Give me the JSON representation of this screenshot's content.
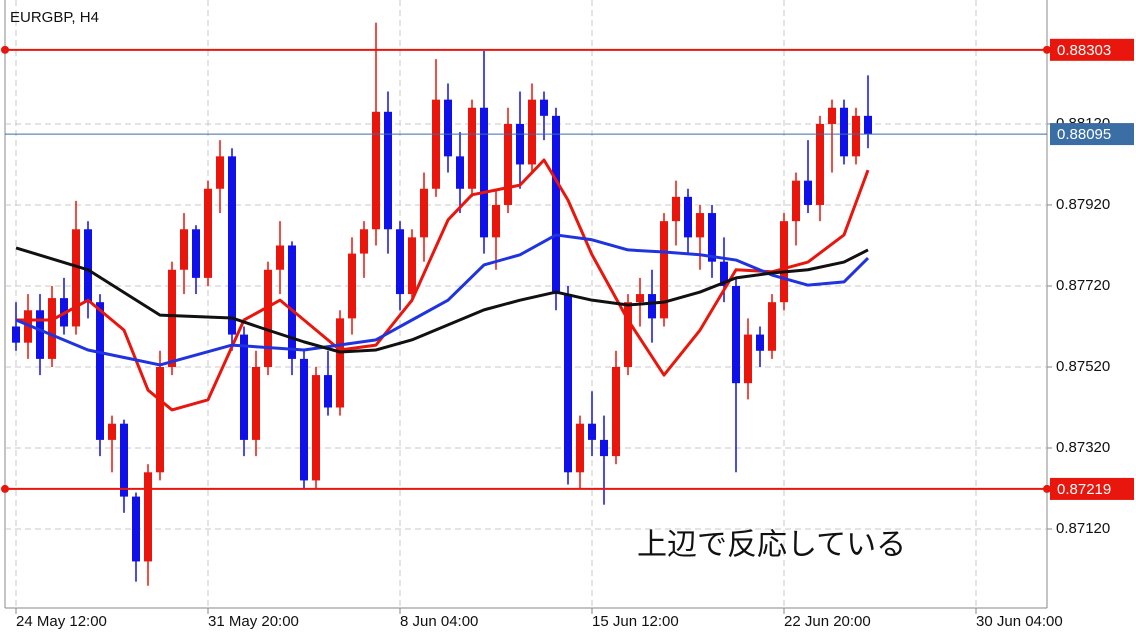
{
  "chart_data": {
    "type": "candlestick",
    "title": "EURGBP, H4",
    "annotation": "上辺で反応している",
    "categories": [
      "24 May 12:00",
      null,
      null,
      null,
      null,
      null,
      null,
      null,
      null,
      null,
      null,
      null,
      null,
      null,
      null,
      null,
      "31 May 20:00",
      null,
      null,
      null,
      null,
      null,
      null,
      null,
      null,
      null,
      null,
      null,
      null,
      null,
      null,
      null,
      "8 Jun 04:00",
      null,
      null,
      null,
      null,
      null,
      null,
      null,
      null,
      null,
      null,
      null,
      null,
      null,
      null,
      null,
      "15 Jun 12:00",
      null,
      null,
      null,
      null,
      null,
      null,
      null,
      null,
      null,
      null,
      null,
      null,
      null,
      null,
      null,
      "22 Jun 20:00",
      null,
      null,
      null,
      null,
      null,
      null,
      null,
      null,
      null,
      null,
      null,
      null,
      null,
      null,
      null,
      "30 Jun 04:00",
      null,
      null,
      null,
      null,
      null
    ],
    "open": [
      0.8762,
      0.8758,
      0.8766,
      0.8754,
      0.8769,
      0.8762,
      0.8786,
      0.8768,
      0.8734,
      0.8738,
      0.872,
      0.8704,
      0.8726,
      0.8752,
      0.8776,
      0.8786,
      0.8774,
      0.8796,
      0.8804,
      0.876,
      0.8734,
      0.8752,
      0.8776,
      0.8782,
      0.8754,
      0.8724,
      0.875,
      0.8742,
      0.8764,
      0.878,
      0.8786,
      0.8815,
      0.8786,
      0.877,
      0.8784,
      0.8796,
      0.8818,
      0.8804,
      0.8796,
      0.8816,
      0.8784,
      0.8792,
      0.8812,
      0.8802,
      0.8818,
      0.8814,
      0.877,
      0.8726,
      0.8738,
      0.8734,
      0.873,
      0.8752,
      0.8768,
      0.877,
      0.8764,
      0.8788,
      0.8794,
      0.8784,
      0.879,
      0.8778,
      0.8772,
      0.8748,
      0.876,
      0.8756,
      0.8768,
      0.8788,
      0.8798,
      0.8792,
      0.8812,
      0.8816,
      0.8804,
      0.8814,
      null,
      null,
      null,
      null,
      null,
      null,
      null,
      null,
      null,
      null,
      null,
      null,
      null,
      null
    ],
    "high": [
      0.8768,
      0.877,
      0.877,
      0.8772,
      0.8774,
      0.8793,
      0.8788,
      0.877,
      0.874,
      0.8739,
      0.8721,
      0.8728,
      0.8756,
      0.8778,
      0.879,
      0.8787,
      0.8798,
      0.8808,
      0.8806,
      0.8762,
      0.8756,
      0.8778,
      0.8788,
      0.8783,
      0.8756,
      0.8752,
      0.8756,
      0.8766,
      0.8784,
      0.8788,
      0.8837,
      0.882,
      0.8788,
      0.8786,
      0.88,
      0.8828,
      0.8822,
      0.881,
      0.8818,
      0.883,
      0.8796,
      0.8816,
      0.882,
      0.8822,
      0.882,
      0.8816,
      0.8772,
      0.874,
      0.8746,
      0.874,
      0.8756,
      0.877,
      0.8774,
      0.8776,
      0.879,
      0.8798,
      0.8796,
      0.8792,
      0.8792,
      0.8784,
      0.8774,
      0.8764,
      0.8762,
      0.877,
      0.879,
      0.88,
      0.8808,
      0.8814,
      0.8818,
      0.8818,
      0.8816,
      0.8824,
      null,
      null,
      null,
      null,
      null,
      null,
      null,
      null,
      null,
      null,
      null,
      null,
      null,
      null
    ],
    "low": [
      0.8756,
      0.8754,
      0.875,
      0.8752,
      0.876,
      0.876,
      0.8764,
      0.873,
      0.8726,
      0.8716,
      0.8699,
      0.8698,
      0.8724,
      0.875,
      0.877,
      0.877,
      0.8772,
      0.879,
      0.8756,
      0.873,
      0.873,
      0.875,
      0.877,
      0.875,
      0.8722,
      0.8722,
      0.874,
      0.874,
      0.876,
      0.8774,
      0.8782,
      0.878,
      0.8766,
      0.8768,
      0.8778,
      0.8794,
      0.88,
      0.879,
      0.8794,
      0.878,
      0.8776,
      0.879,
      0.8796,
      0.88,
      0.8808,
      0.8766,
      0.8723,
      0.8722,
      0.873,
      0.8718,
      0.8728,
      0.875,
      0.8762,
      0.8758,
      0.8762,
      0.8782,
      0.878,
      0.8776,
      0.8774,
      0.8768,
      0.8726,
      0.8744,
      0.8752,
      0.8754,
      0.8766,
      0.8782,
      0.879,
      0.8788,
      0.88,
      0.8802,
      0.8802,
      0.8806,
      null,
      null,
      null,
      null,
      null,
      null,
      null,
      null,
      null,
      null,
      null,
      null,
      null,
      null
    ],
    "close": [
      0.8758,
      0.8766,
      0.8754,
      0.8769,
      0.8762,
      0.8786,
      0.8768,
      0.8734,
      0.8738,
      0.872,
      0.8704,
      0.8726,
      0.8752,
      0.8776,
      0.8786,
      0.8774,
      0.8796,
      0.8804,
      0.876,
      0.8734,
      0.8752,
      0.8776,
      0.8782,
      0.8754,
      0.8724,
      0.875,
      0.8742,
      0.8764,
      0.878,
      0.8786,
      0.8815,
      0.8786,
      0.877,
      0.8784,
      0.8796,
      0.8818,
      0.8804,
      0.8796,
      0.8816,
      0.8784,
      0.8792,
      0.8812,
      0.8802,
      0.8818,
      0.8814,
      0.877,
      0.8726,
      0.8738,
      0.8734,
      0.873,
      0.8752,
      0.8768,
      0.877,
      0.8764,
      0.8788,
      0.8794,
      0.8784,
      0.879,
      0.8778,
      0.8772,
      0.8748,
      0.876,
      0.8756,
      0.8768,
      0.8788,
      0.8798,
      0.8792,
      0.8812,
      0.8816,
      0.8804,
      0.8814,
      0.88095,
      null,
      null,
      null,
      null,
      null,
      null,
      null,
      null,
      null,
      null,
      null,
      null,
      null,
      null
    ],
    "up_color": "#e8160c",
    "down_color": "#1010e8",
    "lines": [
      {
        "color": "#e8160c",
        "x": [
          0,
          3,
          6,
          9,
          11,
          13,
          16,
          19,
          22,
          24,
          27,
          30,
          33,
          36,
          38,
          40,
          42,
          44,
          46,
          48,
          51,
          54,
          57,
          60,
          63,
          66,
          69,
          71
        ],
        "values": [
          0.87636,
          0.87636,
          0.87685,
          0.87611,
          0.87463,
          0.87414,
          0.87439,
          0.87636,
          0.87685,
          0.87636,
          0.87562,
          0.87574,
          0.87685,
          0.87883,
          0.87945,
          0.87957,
          0.87969,
          0.88031,
          0.87932,
          0.87797,
          0.87636,
          0.875,
          0.87611,
          0.8776,
          0.87755,
          0.87779,
          0.87846,
          0.88006
        ]
      },
      {
        "color": "#1f33e0",
        "x": [
          0,
          6,
          12,
          18,
          24,
          30,
          33,
          36,
          39,
          42,
          45,
          48,
          51,
          54,
          57,
          60,
          63,
          66,
          69,
          71
        ],
        "values": [
          0.87636,
          0.87562,
          0.87525,
          0.87574,
          0.87562,
          0.87587,
          0.87636,
          0.87685,
          0.87772,
          0.87797,
          0.87846,
          0.87834,
          0.87809,
          0.87804,
          0.87797,
          0.87784,
          0.87747,
          0.87722,
          0.8773,
          0.87789
        ]
      },
      {
        "color": "#111111",
        "x": [
          0,
          6,
          12,
          18,
          21,
          24,
          27,
          30,
          33,
          36,
          39,
          42,
          45,
          48,
          51,
          54,
          57,
          60,
          63,
          66,
          69,
          71
        ],
        "values": [
          0.87814,
          0.8776,
          0.87648,
          0.87641,
          0.87611,
          0.87582,
          0.87557,
          0.87562,
          0.87587,
          0.87624,
          0.87661,
          0.87685,
          0.87705,
          0.87685,
          0.87673,
          0.8768,
          0.87705,
          0.8774,
          0.87752,
          0.8776,
          0.87779,
          0.87809
        ]
      }
    ],
    "levels": [
      {
        "value": 0.88303,
        "color": "#e8160c"
      },
      {
        "value": 0.87219,
        "color": "#e8160c"
      },
      {
        "value": 0.88095,
        "color": "#3a6ea5"
      }
    ],
    "ylim": [
      0.86925,
      0.88426
    ],
    "yticks": [
      {
        "value": 0.8812,
        "label": "0.88120"
      },
      {
        "value": 0.8792,
        "label": "0.87920"
      },
      {
        "value": 0.8772,
        "label": "0.87720"
      },
      {
        "value": 0.8752,
        "label": "0.87520"
      },
      {
        "value": 0.8732,
        "label": "0.87320"
      },
      {
        "value": 0.8712,
        "label": "0.87120"
      }
    ],
    "grid": true
  }
}
